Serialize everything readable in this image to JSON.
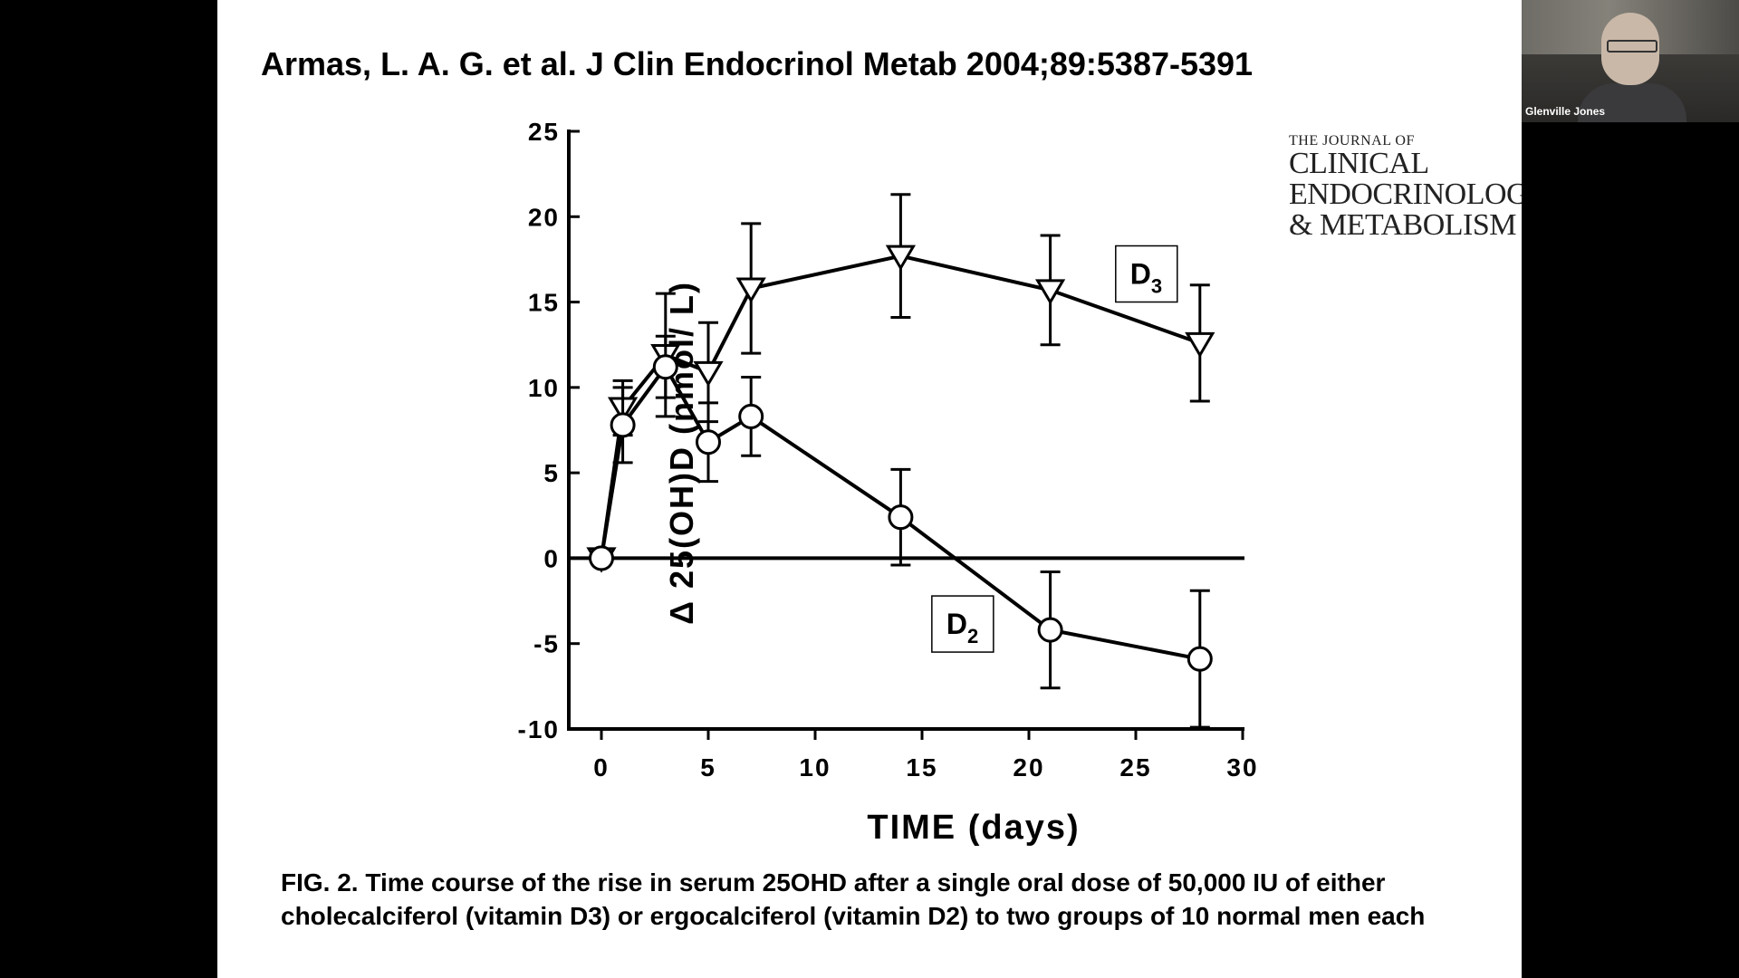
{
  "slide": {
    "citation": "Armas, L. A. G. et al. J Clin Endocrinol Metab 2004;89:5387-5391",
    "journal_logo": {
      "line1": "THE JOURNAL OF",
      "line2": "CLINICAL",
      "line3": "ENDOCRINOLOGY",
      "line4": "& METABOLISM"
    },
    "caption": "FIG. 2. Time course of the rise in serum 25OHD after a single oral dose of 50,000 IU of either cholecalciferol (vitamin D3) or ergocalciferol (vitamin D2) to two groups of 10 normal men each"
  },
  "video": {
    "participant_name": "Glenville Jones"
  },
  "chart_data": {
    "type": "line",
    "title": "",
    "xlabel": "TIME (days)",
    "ylabel": "Δ 25(OH)D (nmol/ L)",
    "xlim": [
      0,
      30
    ],
    "ylim": [
      -10,
      25
    ],
    "xticks": [
      0,
      5,
      10,
      15,
      20,
      25,
      30
    ],
    "yticks": [
      -10,
      -5,
      0,
      5,
      10,
      15,
      20,
      25
    ],
    "grid": false,
    "zero_line": true,
    "series": [
      {
        "name": "D3",
        "label_main": "D",
        "label_sub": "3",
        "marker": "triangle-down",
        "label_pos": [
          25.5,
          16.7
        ],
        "points": [
          {
            "x": 0,
            "y": 0,
            "err": 0
          },
          {
            "x": 1,
            "y": 8.8,
            "err": 1.6
          },
          {
            "x": 3,
            "y": 11.9,
            "err": 3.6
          },
          {
            "x": 5,
            "y": 10.9,
            "err": 2.9
          },
          {
            "x": 7,
            "y": 15.8,
            "err": 3.8
          },
          {
            "x": 14,
            "y": 17.7,
            "err": 3.6
          },
          {
            "x": 21,
            "y": 15.7,
            "err": 3.2
          },
          {
            "x": 28,
            "y": 12.6,
            "err": 3.4
          }
        ]
      },
      {
        "name": "D2",
        "label_main": "D",
        "label_sub": "2",
        "marker": "circle",
        "label_pos": [
          16.9,
          -3.8
        ],
        "points": [
          {
            "x": 0,
            "y": 0,
            "err": 0
          },
          {
            "x": 1,
            "y": 7.8,
            "err": 2.2
          },
          {
            "x": 3,
            "y": 11.2,
            "err": 1.8
          },
          {
            "x": 5,
            "y": 6.8,
            "err": 2.3
          },
          {
            "x": 7,
            "y": 8.3,
            "err": 2.3
          },
          {
            "x": 14,
            "y": 2.4,
            "err": 2.8
          },
          {
            "x": 21,
            "y": -4.2,
            "err": 3.4
          },
          {
            "x": 28,
            "y": -5.9,
            "err": 4.0
          }
        ]
      }
    ]
  }
}
